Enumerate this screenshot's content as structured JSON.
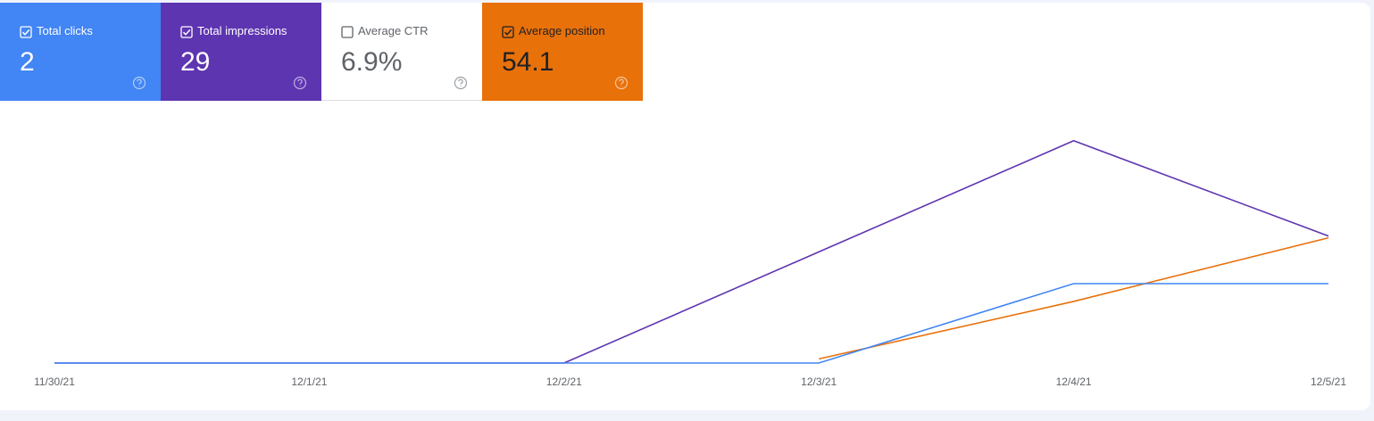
{
  "cards": [
    {
      "label": "Total clicks",
      "value": "2",
      "checked": true,
      "color": "#4285f4"
    },
    {
      "label": "Total impressions",
      "value": "29",
      "checked": true,
      "color": "#5e35b1"
    },
    {
      "label": "Average CTR",
      "value": "6.9%",
      "checked": false,
      "color": "#ffffff"
    },
    {
      "label": "Average position",
      "value": "54.1",
      "checked": true,
      "color": "#e8710a"
    }
  ],
  "chart_data": {
    "type": "line",
    "x": [
      "11/30/21",
      "12/1/21",
      "12/2/21",
      "12/3/21",
      "12/4/21",
      "12/5/21"
    ],
    "series": [
      {
        "name": "Total impressions",
        "color": "#5e35b1",
        "values": [
          0,
          0,
          0,
          7,
          14,
          8
        ],
        "ylim": [
          0,
          15
        ]
      },
      {
        "name": "Average position",
        "color": "#e8710a",
        "values": [
          null,
          null,
          null,
          84,
          56,
          25
        ],
        "ylim": [
          86,
          -30
        ]
      },
      {
        "name": "Total clicks",
        "color": "#4285f4",
        "values": [
          0,
          0,
          0,
          0,
          1,
          1
        ],
        "ylim": [
          0,
          3
        ]
      }
    ]
  }
}
